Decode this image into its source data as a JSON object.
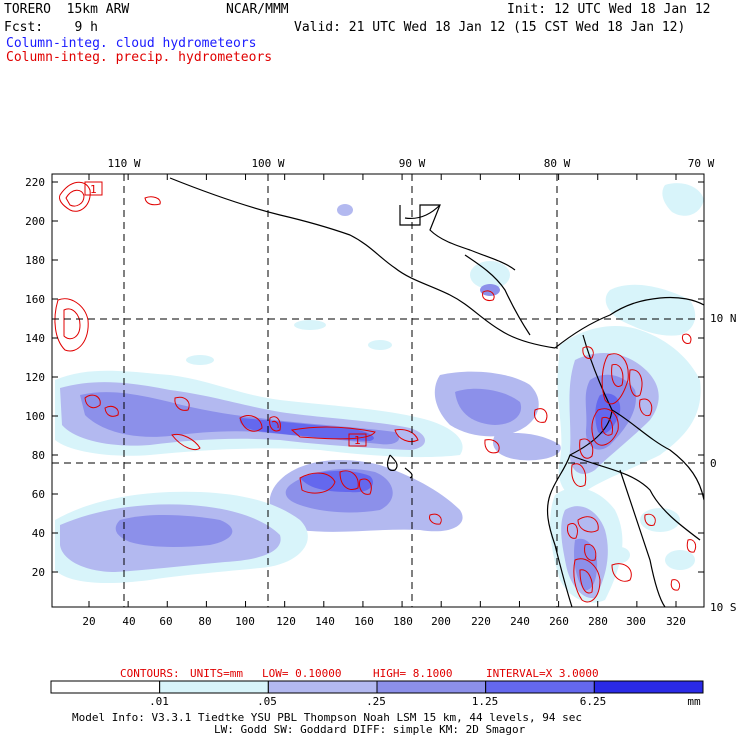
{
  "header": {
    "model": "TORERO  15km ARW",
    "center": "NCAR/MMM",
    "init": "Init: 12 UTC Wed 18 Jan 12",
    "fcst": "Fcst:    9 h",
    "valid": "Valid: 21 UTC Wed 18 Jan 12 (15 CST Wed 18 Jan 12)",
    "field_cloud": "Column-integ. cloud hydrometeors",
    "field_precip": "Column-integ. precip. hydrometeors"
  },
  "axes": {
    "x_ticks": [
      "20",
      "40",
      "60",
      "80",
      "100",
      "120",
      "140",
      "160",
      "180",
      "200",
      "220",
      "240",
      "260",
      "280",
      "300",
      "320"
    ],
    "y_ticks": [
      "20",
      "40",
      "60",
      "80",
      "100",
      "120",
      "140",
      "160",
      "180",
      "200",
      "220"
    ],
    "lon_labels": [
      "110 W",
      "100 W",
      "90 W",
      "80 W",
      "70 W"
    ],
    "lat_labels": [
      "10 N",
      "0",
      "10 S"
    ]
  },
  "contours_info": {
    "label": "CONTOURS:",
    "units": "UNITS=mm",
    "low": "LOW= 0.10000",
    "high": "HIGH=  8.1000",
    "interval": "INTERVAL=X  3.0000"
  },
  "legend": {
    "labels": [
      ".01",
      ".05",
      ".25",
      "1.25",
      "6.25"
    ],
    "unit": "mm",
    "colors": [
      "#ffffff",
      "#d8f4fa",
      "#b3b9f0",
      "#8c90ea",
      "#6468ee",
      "#2a2ae6"
    ]
  },
  "map_labels": {
    "box_label": "1"
  },
  "model_info": {
    "line1": "Model Info: V3.3.1    Tiedtke YSU PBL  Thompson    Noah LSM  15 km,   44 levels,   94 sec",
    "line2": "LW: Godd SW: Goddard DIFF: simple KM: 2D Smagor"
  }
}
